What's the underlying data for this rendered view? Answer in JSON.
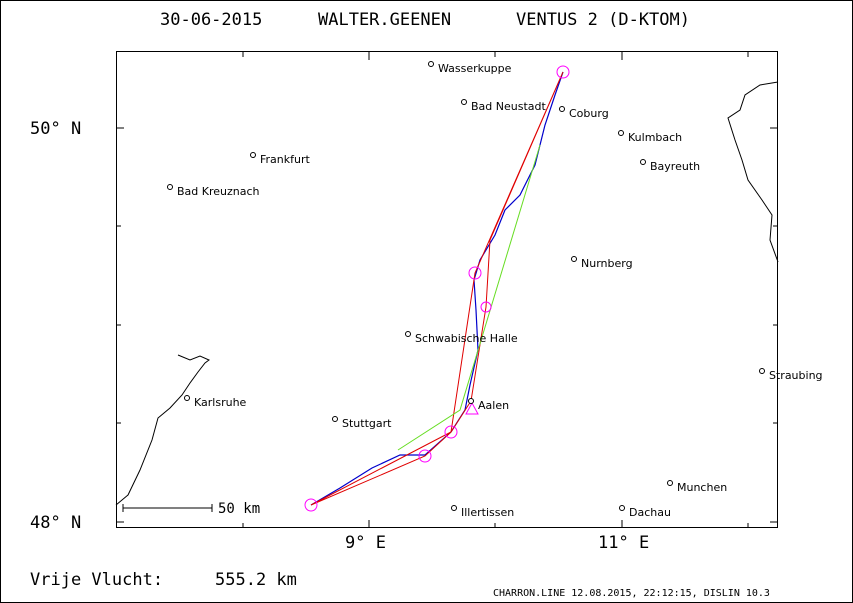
{
  "header": {
    "date": "30-06-2015",
    "pilot": "WALTER.GEENEN",
    "glider": "VENTUS 2 (D-KTOM)"
  },
  "axes": {
    "y_labels": [
      "50° N",
      "48° N"
    ],
    "x_labels": [
      "9° E",
      "11° E"
    ]
  },
  "cities": [
    "Wasserkuppe",
    "Bad Neustadt",
    "Coburg",
    "Kulmbach",
    "Bayreuth",
    "Frankfurt",
    "Bad Kreuznach",
    "Nurnberg",
    "Schwabische Halle",
    "Straubing",
    "Karlsruhe",
    "Aalen",
    "Stuttgart",
    "Munchen",
    "Illertissen",
    "Dachau"
  ],
  "scale": "50 km",
  "distance": {
    "label": "Vrije Vlucht:",
    "value": "555.2 km"
  },
  "footer": "CHARRON.LINE 12.08.2015, 22:12:15, DISLIN 10.3"
}
